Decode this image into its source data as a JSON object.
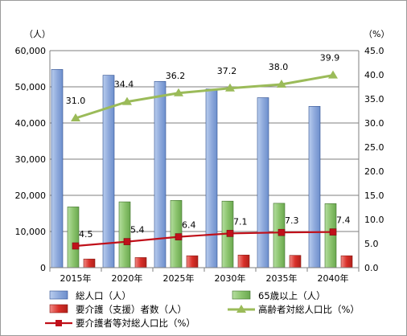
{
  "chart_data": {
    "type": "bar",
    "categories": [
      "2015年",
      "2020年",
      "2025年",
      "2030年",
      "2035年",
      "2040年"
    ],
    "y_left": {
      "unit": "（人）",
      "ylim": [
        0,
        60000
      ],
      "ticks": [
        "0",
        "10,000",
        "20,000",
        "30,000",
        "40,000",
        "50,000",
        "60,000"
      ]
    },
    "y_right": {
      "unit": "（%）",
      "ylim": [
        0,
        45
      ],
      "ticks": [
        "0.0",
        "5.0",
        "10.0",
        "15.0",
        "20.0",
        "25.0",
        "30.0",
        "35.0",
        "40.0",
        "45.0"
      ]
    },
    "series": [
      {
        "name": "総人口（人）",
        "kind": "bar",
        "axis": "left",
        "color": "#8faadc",
        "values": [
          54800,
          53200,
          51500,
          49400,
          47000,
          44600
        ]
      },
      {
        "name": "65歳以上（人）",
        "kind": "bar",
        "axis": "left",
        "color": "#8cc46e",
        "values": [
          16800,
          18200,
          18600,
          18400,
          17800,
          17700
        ]
      },
      {
        "name": "要介護（支援）者数（人）",
        "kind": "bar",
        "axis": "left",
        "color": "#d9302a",
        "values": [
          2400,
          2800,
          3300,
          3500,
          3400,
          3300
        ]
      },
      {
        "name": "高齢者対総人口比（%）",
        "kind": "line",
        "axis": "right",
        "color": "#9bbb59",
        "marker": "triangle",
        "values": [
          31.0,
          34.4,
          36.2,
          37.2,
          38.0,
          39.9
        ],
        "labels": [
          "31.0",
          "34.4",
          "36.2",
          "37.2",
          "38.0",
          "39.9"
        ]
      },
      {
        "name": "要介護者等対総人口比（%）",
        "kind": "line",
        "axis": "right",
        "color": "#c0101a",
        "marker": "square",
        "values": [
          4.5,
          5.4,
          6.4,
          7.1,
          7.3,
          7.4
        ],
        "labels": [
          "4.5",
          "5.4",
          "6.4",
          "7.1",
          "7.3",
          "7.4"
        ]
      }
    ],
    "grid": true,
    "legend": "bottom"
  }
}
